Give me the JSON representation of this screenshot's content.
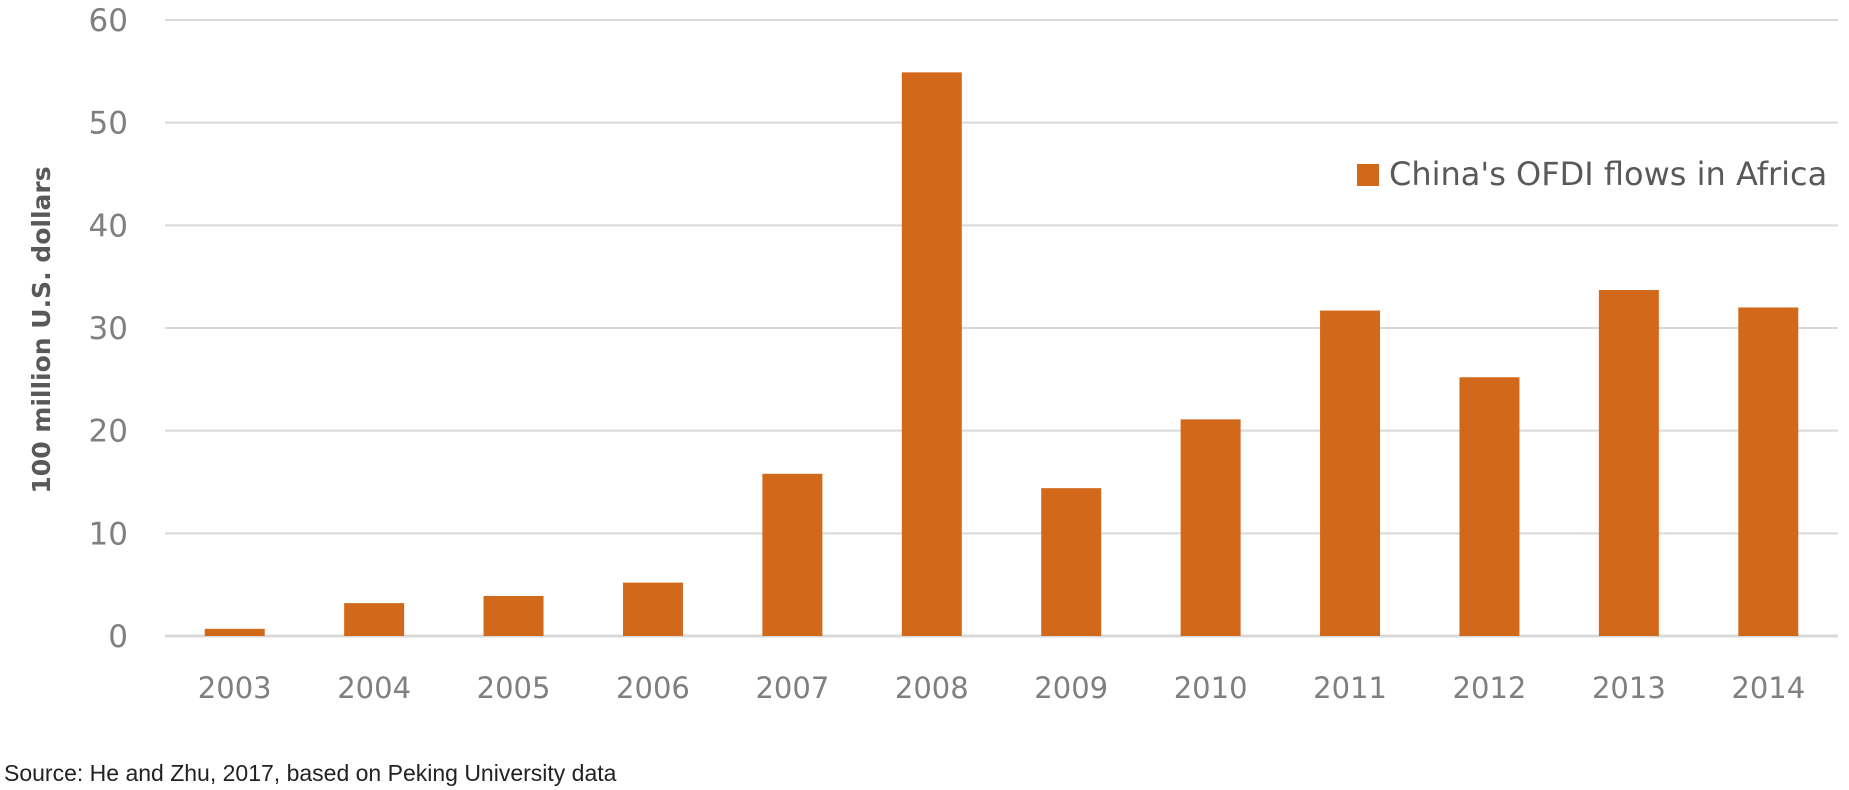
{
  "chart_data": {
    "type": "bar",
    "categories": [
      "2003",
      "2004",
      "2005",
      "2006",
      "2007",
      "2008",
      "2009",
      "2010",
      "2011",
      "2012",
      "2013",
      "2014"
    ],
    "series": [
      {
        "name": "China's OFDI flows in Africa",
        "values": [
          0.7,
          3.2,
          3.9,
          5.2,
          15.8,
          54.9,
          14.4,
          21.1,
          31.7,
          25.2,
          33.7,
          32.0
        ],
        "color": "#d2691a"
      }
    ],
    "ylabel": "100 million U.S. dollars",
    "ylim": [
      0,
      60
    ],
    "yticks": [
      "0",
      "10",
      "20",
      "30",
      "40",
      "50",
      "60"
    ],
    "grid": true,
    "legend_position": "top-right",
    "source": "Source: He and Zhu, 2017, based on Peking University data"
  }
}
